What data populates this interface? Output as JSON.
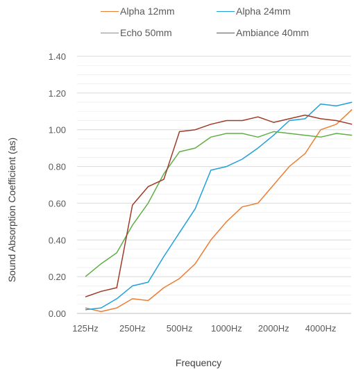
{
  "chart_data": {
    "type": "line",
    "title": "",
    "xlabel": "Frequency",
    "ylabel": "Sound Absorption Coefficient (as)",
    "ylim": [
      0,
      1.4
    ],
    "y_ticks": [
      "0.00",
      "0.20",
      "0.40",
      "0.60",
      "0.80",
      "1.00",
      "1.20",
      "1.40"
    ],
    "x_tick_labels": [
      {
        "label": "125Hz",
        "index": 0
      },
      {
        "label": "250Hz",
        "index": 3
      },
      {
        "label": "500Hz",
        "index": 6
      },
      {
        "label": "1000Hz",
        "index": 9
      },
      {
        "label": "2000Hz",
        "index": 12
      },
      {
        "label": "4000Hz",
        "index": 15
      }
    ],
    "point_count": 18,
    "grid": true,
    "legend_position": "top",
    "series": [
      {
        "name": "Alpha 12mm",
        "color": "#ED7D31",
        "values": [
          0.03,
          0.01,
          0.03,
          0.08,
          0.07,
          0.14,
          0.19,
          0.27,
          0.4,
          0.5,
          0.58,
          0.6,
          0.7,
          0.8,
          0.87,
          1.0,
          1.03,
          1.11
        ]
      },
      {
        "name": "Alpha 24mm",
        "color": "#1FA0D8",
        "values": [
          0.02,
          0.03,
          0.08,
          0.15,
          0.17,
          0.31,
          0.44,
          0.57,
          0.78,
          0.8,
          0.84,
          0.9,
          0.97,
          1.05,
          1.06,
          1.14,
          1.13,
          1.15
        ]
      },
      {
        "name": "Echo 50mm",
        "color": "#5FAF46",
        "values": [
          0.2,
          0.27,
          0.33,
          0.48,
          0.6,
          0.76,
          0.88,
          0.9,
          0.96,
          0.98,
          0.98,
          0.96,
          0.99,
          0.98,
          0.97,
          0.96,
          0.98,
          0.97
        ]
      },
      {
        "name": "Ambiance 40mm",
        "color": "#9E3A26",
        "values": [
          0.09,
          0.12,
          0.14,
          0.59,
          0.69,
          0.73,
          0.99,
          1.0,
          1.03,
          1.05,
          1.05,
          1.07,
          1.04,
          1.06,
          1.08,
          1.06,
          1.05,
          1.03
        ]
      }
    ]
  }
}
